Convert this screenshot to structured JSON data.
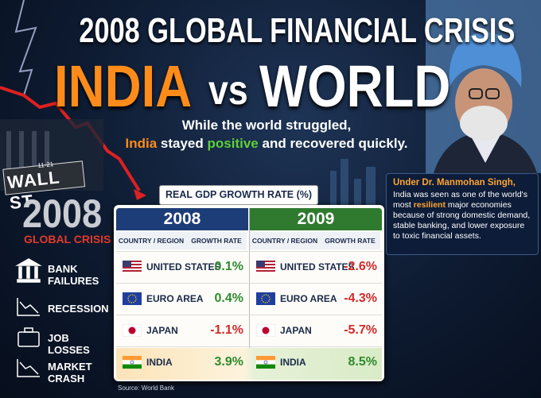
{
  "header": {
    "title": "2008 GLOBAL FINANCIAL CRISIS",
    "india": "INDIA",
    "vs": "vs",
    "world": "WORLD",
    "subtitle_line1": "While the world struggled,",
    "subtitle_india": "India",
    "subtitle_mid": "stayed",
    "subtitle_positive": "positive",
    "subtitle_end": "and recovered quickly."
  },
  "sign": {
    "number": "11-21",
    "street": "WALL ST"
  },
  "crisis": {
    "year": "2008",
    "label": "GLOBAL CRISIS",
    "items": [
      "BANK FAILURES",
      "RECESSION",
      "JOB LOSSES",
      "MARKET CRASH"
    ]
  },
  "table": {
    "title": "REAL GDP GROWTH RATE (%)",
    "years": [
      {
        "year": "2008",
        "columns": [
          "COUNTRY / REGION",
          "GROWTH RATE"
        ],
        "rows": [
          [
            "UNITED STATES",
            "0.1%"
          ],
          [
            "EURO AREA",
            "0.4%"
          ],
          [
            "JAPAN",
            "-1.1%"
          ],
          [
            "INDIA",
            "3.9%"
          ]
        ]
      },
      {
        "year": "2009",
        "columns": [
          "COUNTRY / REGION",
          "GROWTH RATE"
        ],
        "rows": [
          [
            "UNITED STATES",
            "-2.6%"
          ],
          [
            "EURO AREA",
            "-4.3%"
          ],
          [
            "JAPAN",
            "-5.7%"
          ],
          [
            "INDIA",
            "8.5%"
          ]
        ]
      }
    ],
    "source": "Source: World Bank"
  },
  "callout": {
    "heading": "Under Dr. Manmohan Singh,",
    "text_start": "India was seen as one of the world's most",
    "highlight": "resilient",
    "text_end": "major economies because of strong domestic demand, stable banking, and lower exposure to toxic financial assets."
  }
}
